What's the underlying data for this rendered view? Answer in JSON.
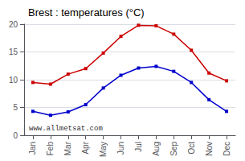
{
  "chart_data": {
    "type": "line",
    "title": "Brest : temperatures (°C)",
    "categories": [
      "Jan",
      "Feb",
      "Mar",
      "Apr",
      "May",
      "Jun",
      "Jul",
      "Aug",
      "Sep",
      "Oct",
      "Nov",
      "Dec"
    ],
    "series": [
      {
        "color": "#cc0000",
        "values": [
          9.5,
          9.2,
          11.0,
          12.0,
          14.8,
          17.8,
          19.8,
          19.7,
          18.2,
          15.3,
          11.2,
          9.8
        ]
      },
      {
        "color": "#0000cc",
        "values": [
          4.3,
          3.6,
          4.2,
          5.5,
          8.5,
          10.8,
          12.1,
          12.4,
          11.5,
          9.5,
          6.4,
          4.3
        ]
      }
    ],
    "ylim": [
      0,
      20
    ],
    "yticks": [
      0,
      5,
      10,
      15,
      20
    ],
    "grid": true,
    "marker": "square",
    "annotations": [
      "www.allmetsat.com"
    ]
  }
}
